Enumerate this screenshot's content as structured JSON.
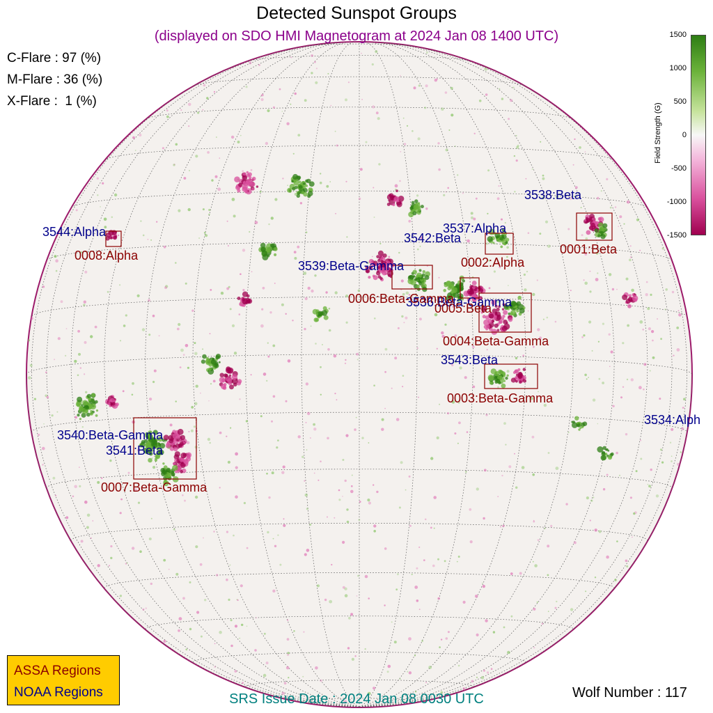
{
  "header": {
    "title": "Detected Sunspot Groups",
    "subtitle": "(displayed on SDO HMI Magnetogram at 2024 Jan 08 1400 UTC)"
  },
  "flare_probabilities": [
    {
      "label": "C-Flare : 97 (%)"
    },
    {
      "label": "M-Flare : 36 (%)"
    },
    {
      "label": "X-Flare :  1 (%)"
    }
  ],
  "colorbar": {
    "title": "Field Strength (G)",
    "ticks": [
      "1500",
      "1000",
      "500",
      "0",
      "-500",
      "-1000",
      "-1500"
    ],
    "positive_color": "#2e7d14",
    "negative_color": "#a0004f"
  },
  "regions": {
    "noaa": [
      {
        "label": "3538:Beta"
      },
      {
        "label": "3544:Alpha"
      },
      {
        "label": "3537:Alpha"
      },
      {
        "label": "3542:Beta"
      },
      {
        "label": "3539:Beta-Gamma"
      },
      {
        "label": "3536:Beta-Gamma"
      },
      {
        "label": "3543:Beta"
      },
      {
        "label": "3534:Alph"
      },
      {
        "label": "3540:Beta-Gamma"
      },
      {
        "label": "3541:Beta"
      }
    ],
    "assa": [
      {
        "label": "0008:Alpha"
      },
      {
        "label": "0001:Beta"
      },
      {
        "label": "0002:Alpha"
      },
      {
        "label": "0006:Beta-Gamma"
      },
      {
        "label": "0005:Beta"
      },
      {
        "label": "0004:Beta-Gamma"
      },
      {
        "label": "0003:Beta-Gamma"
      },
      {
        "label": "0007:Beta-Gamma"
      }
    ]
  },
  "legend": {
    "assa_label": "ASSA Regions",
    "noaa_label": "NOAA Regions",
    "assa_color": "#8b0000",
    "noaa_color": "#00008b",
    "background": "#ffcc00"
  },
  "footer": {
    "srs_issue": "SRS Issue Date : 2024 Jan 08 0030 UTC",
    "wolf_number": "Wolf Number : 117"
  }
}
